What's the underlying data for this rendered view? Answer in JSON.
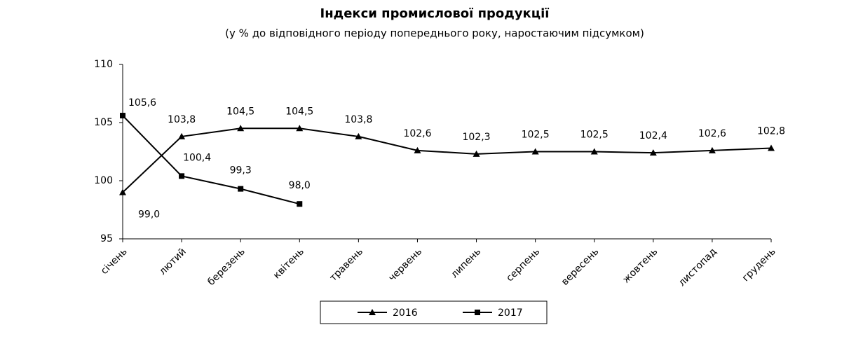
{
  "chart_data": {
    "type": "line",
    "title": "Індекси промислової продукції",
    "subtitle": "(у % до відповідного періоду попереднього року, наростаючим підсумком)",
    "categories": [
      "січень",
      "лютий",
      "березень",
      "квітень",
      "травень",
      "червень",
      "липень",
      "серпень",
      "вересень",
      "жовтень",
      "листопад",
      "грудень"
    ],
    "series": [
      {
        "name": "2016",
        "color": "#000000",
        "marker": "triangle",
        "values": [
          99.0,
          103.8,
          104.5,
          104.5,
          103.8,
          102.6,
          102.3,
          102.5,
          102.5,
          102.4,
          102.6,
          102.8
        ],
        "value_labels": [
          "99,0",
          "103,8",
          "104,5",
          "104,5",
          "103,8",
          "102,6",
          "102,3",
          "102,5",
          "102,5",
          "102,4",
          "102,6",
          "102,8"
        ]
      },
      {
        "name": "2017",
        "color": "#000000",
        "marker": "square",
        "values": [
          105.6,
          100.4,
          99.3,
          98.0,
          null,
          null,
          null,
          null,
          null,
          null,
          null,
          null
        ],
        "value_labels": [
          "105,6",
          "100,4",
          "99,3",
          "98,0",
          null,
          null,
          null,
          null,
          null,
          null,
          null,
          null
        ]
      }
    ],
    "ylim": [
      95,
      110
    ],
    "yticks": [
      95,
      100,
      105,
      110
    ],
    "grid": false,
    "legend": "bottom"
  }
}
